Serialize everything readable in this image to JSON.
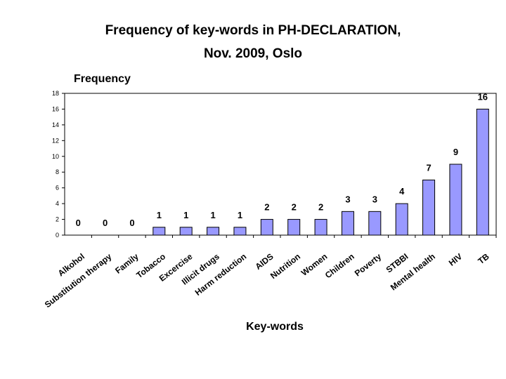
{
  "chart_data": {
    "type": "bar",
    "title_line1": "Frequency of key-words in PH-DECLARATION,",
    "title_line2": "Nov. 2009, Oslo",
    "xlabel": "Key-words",
    "ylabel": "Frequency",
    "ylim": [
      0,
      18
    ],
    "yticks": [
      "0",
      "2",
      "4",
      "6",
      "8",
      "10",
      "12",
      "14",
      "16",
      "18"
    ],
    "grid": false,
    "bar_color": "#9999ff",
    "categories": [
      "Alkohol",
      "Substitution therapy",
      "Family",
      "Tobacco",
      "Excercise",
      "Illicit drugs",
      "Harm reduction",
      "AIDS",
      "Nutrition",
      "Women",
      "Children",
      "Poverty",
      "STBBI",
      "Mental health",
      "HIV",
      "TB"
    ],
    "values": [
      0,
      0,
      0,
      1,
      1,
      1,
      1,
      2,
      2,
      2,
      3,
      3,
      4,
      7,
      9,
      16
    ],
    "value_labels": [
      "0",
      "0",
      "0",
      "1",
      "1",
      "1",
      "1",
      "2",
      "2",
      "2",
      "3",
      "3",
      "4",
      "7",
      "9",
      "16"
    ]
  }
}
